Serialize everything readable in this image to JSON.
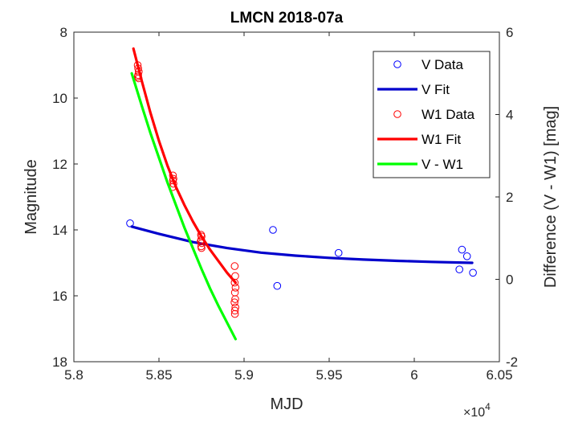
{
  "chart_data": {
    "type": "scatter",
    "title": "LMCN 2018-07a",
    "xlabel": "MJD",
    "ylabel_left": "Magnitude",
    "ylabel_right": "Difference (V - W1) [mag]",
    "x_exponent_label": "×10",
    "x_exponent_power": "4",
    "xlim": [
      58000,
      60500
    ],
    "ylim_left": [
      8,
      18
    ],
    "ylim_left_reversed": true,
    "ylim_right": [
      -2,
      6
    ],
    "xticks": [
      58000,
      58500,
      59000,
      59500,
      60000,
      60500
    ],
    "xtick_labels": [
      "5.8",
      "5.85",
      "5.9",
      "5.95",
      "6",
      "6.05"
    ],
    "yticks_left": [
      8,
      10,
      12,
      14,
      16,
      18
    ],
    "yticks_right": [
      -2,
      0,
      2,
      4,
      6
    ],
    "grid": false,
    "legend_position": "top-right",
    "series": [
      {
        "name": "V Data",
        "kind": "markers",
        "axis": "left",
        "color": "#0000ff",
        "x": [
          58330,
          59170,
          59195,
          59555,
          60265,
          60280,
          60310,
          60345
        ],
        "y": [
          13.8,
          14.0,
          15.7,
          14.7,
          15.2,
          14.6,
          14.8,
          15.3
        ]
      },
      {
        "name": "V Fit",
        "kind": "line",
        "axis": "left",
        "color": "#0000cc",
        "x": [
          58340,
          58500,
          58700,
          58900,
          59100,
          59300,
          59500,
          59700,
          59900,
          60100,
          60340
        ],
        "y": [
          13.9,
          14.12,
          14.37,
          14.55,
          14.69,
          14.78,
          14.85,
          14.9,
          14.94,
          14.97,
          15.0
        ]
      },
      {
        "name": "W1 Data",
        "kind": "markers",
        "axis": "left",
        "color": "#ff0000",
        "x": [
          58375,
          58378,
          58381,
          58378,
          58376,
          58380,
          58582,
          58585,
          58582,
          58585,
          58580,
          58747,
          58750,
          58748,
          58745,
          58752,
          58748,
          58750,
          58945,
          58948,
          58945,
          58950,
          58946,
          58948,
          58944,
          58949,
          58946,
          58946
        ],
        "y": [
          9.0,
          9.1,
          9.2,
          9.3,
          9.35,
          9.4,
          12.35,
          12.45,
          12.5,
          12.6,
          12.7,
          14.15,
          14.2,
          14.3,
          14.35,
          14.4,
          14.5,
          14.55,
          15.1,
          15.4,
          15.6,
          15.75,
          15.9,
          16.1,
          16.2,
          16.35,
          16.45,
          16.55
        ]
      },
      {
        "name": "W1 Fit",
        "kind": "line",
        "axis": "left",
        "color": "#ff0000",
        "x": [
          58350,
          58400,
          58450,
          58500,
          58550,
          58600,
          58650,
          58700,
          58750,
          58800,
          58850,
          58900,
          58950
        ],
        "y": [
          8.5,
          9.5,
          10.45,
          11.3,
          12.05,
          12.7,
          13.25,
          13.75,
          14.2,
          14.6,
          14.95,
          15.3,
          15.6
        ]
      },
      {
        "name": "V - W1",
        "kind": "line",
        "axis": "right",
        "color": "#00ff00",
        "x": [
          58340,
          58400,
          58450,
          58500,
          58550,
          58600,
          58650,
          58700,
          58750,
          58800,
          58850,
          58900,
          58950
        ],
        "y": [
          5.0,
          4.2,
          3.55,
          2.95,
          2.35,
          1.8,
          1.25,
          0.75,
          0.25,
          -0.22,
          -0.65,
          -1.05,
          -1.45
        ]
      }
    ]
  }
}
